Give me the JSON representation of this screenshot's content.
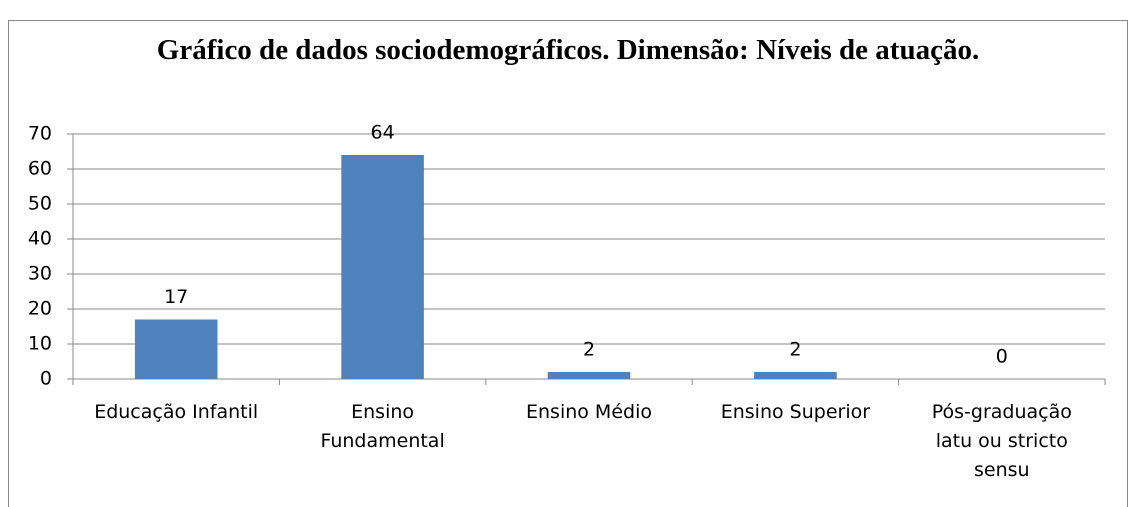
{
  "chart_data": {
    "type": "bar",
    "title": "Gráfico de dados sociodemográficos. Dimensão: Níveis de atuação.",
    "categories": [
      "Educação Infantil",
      "Ensino Fundamental",
      "Ensino Médio",
      "Ensino Superior",
      "Pós-graduação latu ou stricto sensu"
    ],
    "values": [
      17,
      64,
      2,
      2,
      0
    ],
    "color": "#4f81bd",
    "ylim": [
      0,
      70
    ],
    "yticks": [
      0,
      10,
      20,
      30,
      40,
      50,
      60,
      70
    ],
    "grid": true
  }
}
